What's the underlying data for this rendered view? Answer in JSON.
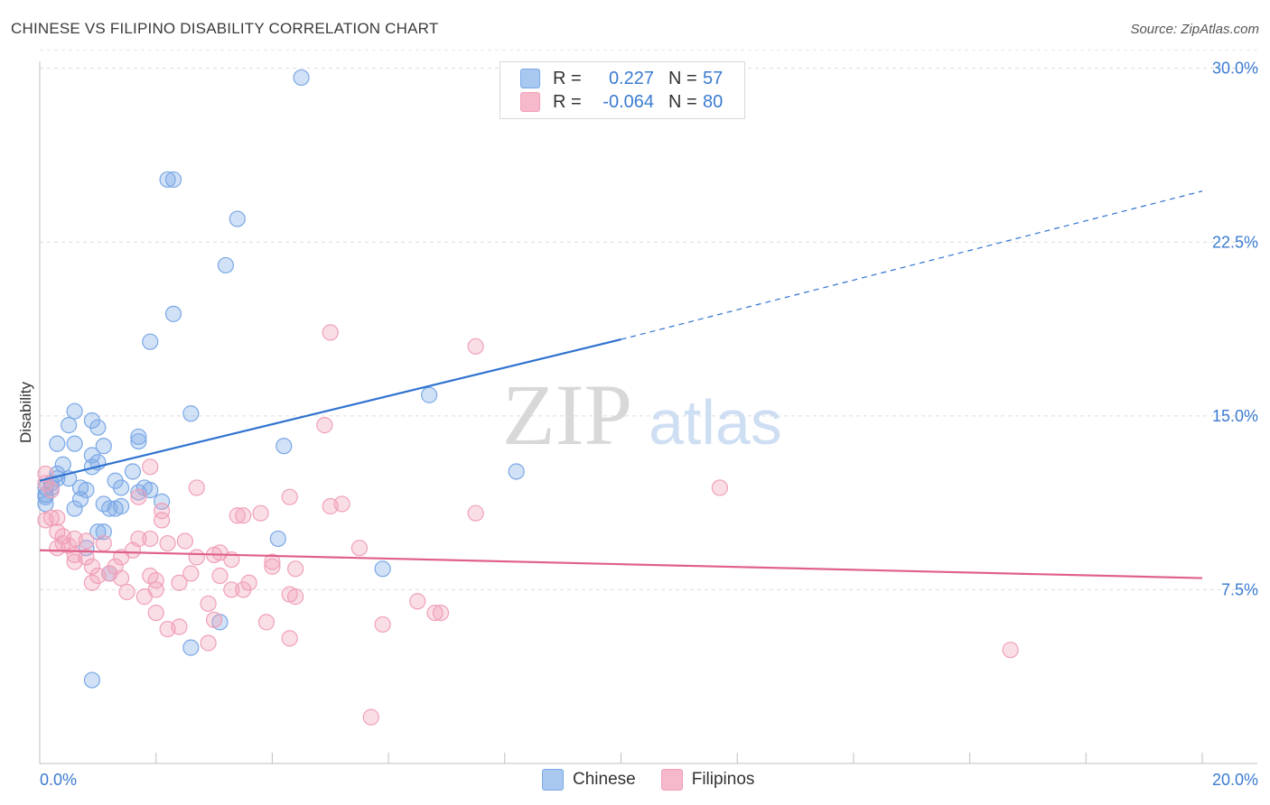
{
  "header": {
    "title": "CHINESE VS FILIPINO DISABILITY CORRELATION CHART",
    "source": "Source: ZipAtlas.com"
  },
  "watermark": {
    "zip": "ZIP",
    "atlas": "atlas"
  },
  "legend": {
    "rows": [
      {
        "r_label": "R =",
        "r_value": "0.227",
        "n_label": "N =",
        "n_value": "57",
        "color": "#a9c8f0"
      },
      {
        "r_label": "R =",
        "r_value": "-0.064",
        "n_label": "N =",
        "n_value": "80",
        "color": "#f6b8cb"
      }
    ],
    "bottom": [
      {
        "label": "Chinese",
        "color": "#a9c8f0"
      },
      {
        "label": "Filipinos",
        "color": "#f6b8cb"
      }
    ]
  },
  "chart_data": {
    "type": "scatter",
    "title": "CHINESE VS FILIPINO DISABILITY CORRELATION CHART",
    "xlabel": "",
    "ylabel": "Disability",
    "xlim": [
      0,
      20
    ],
    "ylim": [
      0,
      31
    ],
    "x_tick_labels": [
      "0.0%",
      "20.0%"
    ],
    "y_ticks": [
      7.5,
      15.0,
      22.5,
      30.0
    ],
    "y_tick_labels": [
      "7.5%",
      "15.0%",
      "22.5%",
      "30.0%"
    ],
    "grid": "horizontal dashed",
    "legend_position": "top-center",
    "series": [
      {
        "name": "Chinese",
        "color": "#7aa8e6",
        "line_color": "#2f72d0",
        "trend": {
          "x0": 0,
          "y0": 12.2,
          "x1": 10,
          "y1": 18.3,
          "dash_to_x": 20,
          "dash_y": 24.7
        },
        "points": [
          [
            4.5,
            29.6
          ],
          [
            2.2,
            25.2
          ],
          [
            2.3,
            25.2
          ],
          [
            3.4,
            23.5
          ],
          [
            3.2,
            21.5
          ],
          [
            2.3,
            19.4
          ],
          [
            1.9,
            18.2
          ],
          [
            6.7,
            15.9
          ],
          [
            2.6,
            15.1
          ],
          [
            0.6,
            15.2
          ],
          [
            0.5,
            14.6
          ],
          [
            0.9,
            14.8
          ],
          [
            1.0,
            14.5
          ],
          [
            1.7,
            14.1
          ],
          [
            1.7,
            13.9
          ],
          [
            0.3,
            13.8
          ],
          [
            0.6,
            13.8
          ],
          [
            1.1,
            13.7
          ],
          [
            4.2,
            13.7
          ],
          [
            0.9,
            13.3
          ],
          [
            0.4,
            12.9
          ],
          [
            0.9,
            12.8
          ],
          [
            1.6,
            12.6
          ],
          [
            8.2,
            12.6
          ],
          [
            0.3,
            12.5
          ],
          [
            0.3,
            12.3
          ],
          [
            0.5,
            12.3
          ],
          [
            0.2,
            12.1
          ],
          [
            0.1,
            11.9
          ],
          [
            0.2,
            11.9
          ],
          [
            0.7,
            11.9
          ],
          [
            1.3,
            12.2
          ],
          [
            1.4,
            11.9
          ],
          [
            1.8,
            11.9
          ],
          [
            1.9,
            11.8
          ],
          [
            1.7,
            11.7
          ],
          [
            0.1,
            11.6
          ],
          [
            0.1,
            11.5
          ],
          [
            0.7,
            11.4
          ],
          [
            1.1,
            11.2
          ],
          [
            2.1,
            11.3
          ],
          [
            0.1,
            11.2
          ],
          [
            0.6,
            11.0
          ],
          [
            1.2,
            11.0
          ],
          [
            1.3,
            11.0
          ],
          [
            1.1,
            10.0
          ],
          [
            4.1,
            9.7
          ],
          [
            0.8,
            9.3
          ],
          [
            5.9,
            8.4
          ],
          [
            1.2,
            8.2
          ],
          [
            3.1,
            6.1
          ],
          [
            2.6,
            5.0
          ],
          [
            0.9,
            3.6
          ],
          [
            1.0,
            10.0
          ],
          [
            0.8,
            11.8
          ],
          [
            1.0,
            13.0
          ],
          [
            1.4,
            11.1
          ]
        ]
      },
      {
        "name": "Filipinos",
        "color": "#f0a0b8",
        "line_color": "#e0608a",
        "trend": {
          "x0": 0,
          "y0": 9.2,
          "x1": 20,
          "y1": 8.0
        },
        "points": [
          [
            5.0,
            18.6
          ],
          [
            7.5,
            18.0
          ],
          [
            4.9,
            14.6
          ],
          [
            1.9,
            12.8
          ],
          [
            0.1,
            12.5
          ],
          [
            0.1,
            12.1
          ],
          [
            0.2,
            11.8
          ],
          [
            11.7,
            11.9
          ],
          [
            2.7,
            11.9
          ],
          [
            1.7,
            11.5
          ],
          [
            4.3,
            11.5
          ],
          [
            5.2,
            11.2
          ],
          [
            5.0,
            11.1
          ],
          [
            2.1,
            10.9
          ],
          [
            7.5,
            10.8
          ],
          [
            3.4,
            10.7
          ],
          [
            3.5,
            10.7
          ],
          [
            2.1,
            10.5
          ],
          [
            0.1,
            10.5
          ],
          [
            0.2,
            10.6
          ],
          [
            0.3,
            10.6
          ],
          [
            0.3,
            10.0
          ],
          [
            0.4,
            9.8
          ],
          [
            0.6,
            9.7
          ],
          [
            0.8,
            9.6
          ],
          [
            1.7,
            9.7
          ],
          [
            0.4,
            9.5
          ],
          [
            0.5,
            9.4
          ],
          [
            1.1,
            9.5
          ],
          [
            2.5,
            9.6
          ],
          [
            2.2,
            9.5
          ],
          [
            5.5,
            9.3
          ],
          [
            0.3,
            9.3
          ],
          [
            1.6,
            9.2
          ],
          [
            3.1,
            9.1
          ],
          [
            3.0,
            9.0
          ],
          [
            0.8,
            8.9
          ],
          [
            1.4,
            8.9
          ],
          [
            0.6,
            8.7
          ],
          [
            4.0,
            8.7
          ],
          [
            3.3,
            8.8
          ],
          [
            0.9,
            8.5
          ],
          [
            1.3,
            8.5
          ],
          [
            4.0,
            8.5
          ],
          [
            4.4,
            8.4
          ],
          [
            2.6,
            8.2
          ],
          [
            3.1,
            8.1
          ],
          [
            1.0,
            8.1
          ],
          [
            1.2,
            8.2
          ],
          [
            1.9,
            8.1
          ],
          [
            1.4,
            8.0
          ],
          [
            2.0,
            7.9
          ],
          [
            2.4,
            7.8
          ],
          [
            3.6,
            7.8
          ],
          [
            0.9,
            7.8
          ],
          [
            1.5,
            7.4
          ],
          [
            2.0,
            7.5
          ],
          [
            3.3,
            7.5
          ],
          [
            3.5,
            7.5
          ],
          [
            1.8,
            7.2
          ],
          [
            4.3,
            7.3
          ],
          [
            4.4,
            7.2
          ],
          [
            6.5,
            7.0
          ],
          [
            2.9,
            6.9
          ],
          [
            2.0,
            6.5
          ],
          [
            6.8,
            6.5
          ],
          [
            6.9,
            6.5
          ],
          [
            3.0,
            6.2
          ],
          [
            3.9,
            6.1
          ],
          [
            5.9,
            6.0
          ],
          [
            2.4,
            5.9
          ],
          [
            2.2,
            5.8
          ],
          [
            4.3,
            5.4
          ],
          [
            2.9,
            5.2
          ],
          [
            16.7,
            4.9
          ],
          [
            5.7,
            2.0
          ],
          [
            1.9,
            9.7
          ],
          [
            2.7,
            8.9
          ],
          [
            3.8,
            10.8
          ],
          [
            0.6,
            9.0
          ]
        ]
      }
    ]
  }
}
